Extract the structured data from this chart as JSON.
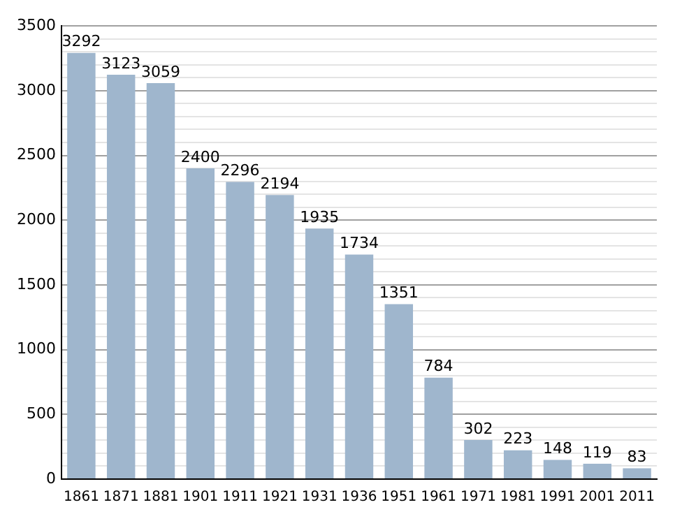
{
  "chart_data": {
    "type": "bar",
    "categories": [
      "1861",
      "1871",
      "1881",
      "1901",
      "1911",
      "1921",
      "1931",
      "1936",
      "1951",
      "1961",
      "1971",
      "1981",
      "1991",
      "2001",
      "2011"
    ],
    "values": [
      3292,
      3123,
      3059,
      2400,
      2296,
      2194,
      1935,
      1734,
      1351,
      784,
      302,
      223,
      148,
      119,
      83
    ],
    "color": "#9fb6cd",
    "ylim": [
      0,
      3500
    ],
    "yticks": [
      0,
      {
        "value": 100,
        "label": null
      },
      {
        "value": 200,
        "label": null
      },
      {
        "value": 300,
        "label": null
      },
      {
        "value": 400,
        "label": null
      },
      500,
      {
        "value": 600,
        "label": null
      },
      {
        "value": 700,
        "label": null
      },
      {
        "value": 800,
        "label": null
      },
      {
        "value": 900,
        "label": null
      },
      1000,
      {
        "value": 1100,
        "label": null
      },
      {
        "value": 1200,
        "label": null
      },
      {
        "value": 1300,
        "label": null
      },
      {
        "value": 1400,
        "label": null
      },
      1500,
      {
        "value": 1600,
        "label": null
      },
      {
        "value": 1700,
        "label": null
      },
      {
        "value": 1800,
        "label": null
      },
      {
        "value": 1900,
        "label": null
      },
      2000,
      {
        "value": 2100,
        "label": null
      },
      {
        "value": 2200,
        "label": null
      },
      {
        "value": 2300,
        "label": null
      },
      {
        "value": 2400,
        "label": null
      },
      2500,
      {
        "value": 2600,
        "label": null
      },
      {
        "value": 2700,
        "label": null
      },
      {
        "value": 2800,
        "label": null
      },
      {
        "value": 2900,
        "label": null
      },
      3000,
      {
        "value": 3100,
        "label": null
      },
      {
        "value": 3200,
        "label": null
      },
      {
        "value": 3300,
        "label": null
      },
      {
        "value": 3400,
        "label": null
      },
      3500
    ],
    "grid": "y",
    "data_labels": true
  }
}
